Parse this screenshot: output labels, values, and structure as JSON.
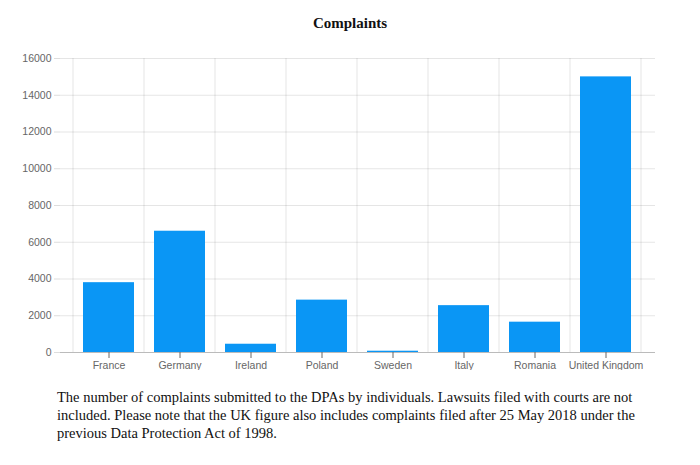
{
  "chart_data": {
    "type": "bar",
    "title": "Complaints",
    "caption": "The number of complaints submitted to the DPAs by individuals. Lawsuits filed with courts are not included. Please note that the UK figure also includes complaints filed after 25 May 2018 under the previous Data Protection Act of 1998.",
    "categories": [
      "France",
      "Germany",
      "Ireland",
      "Poland",
      "Sweden",
      "Italy",
      "Romania",
      "United Kingdom"
    ],
    "values": [
      3800,
      6600,
      450,
      2850,
      70,
      2550,
      1650,
      15000
    ],
    "color": "#0a96f5",
    "ylim": [
      0,
      16000
    ],
    "yticks": [
      0,
      2000,
      4000,
      6000,
      8000,
      10000,
      12000,
      14000,
      16000
    ],
    "grid": true
  }
}
